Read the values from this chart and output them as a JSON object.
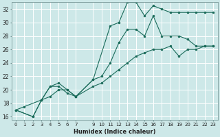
{
  "xlabel": "Humidex (Indice chaleur)",
  "bg_color": "#cde8e8",
  "grid_color": "#ffffff",
  "line_color": "#1a6b5a",
  "xlim": [
    -0.5,
    23.5
  ],
  "ylim": [
    15.5,
    33.0
  ],
  "xticks": [
    0,
    1,
    2,
    3,
    4,
    5,
    6,
    7,
    9,
    10,
    11,
    12,
    13,
    14,
    15,
    16,
    17,
    18,
    19,
    20,
    21,
    22,
    23
  ],
  "yticks": [
    16,
    18,
    20,
    22,
    24,
    26,
    28,
    30,
    32
  ],
  "xtick_fontsize": 5.0,
  "ytick_fontsize": 5.5,
  "xlabel_fontsize": 6.0,
  "line1_x": [
    0,
    1,
    3,
    4,
    5,
    6,
    7,
    9,
    11,
    12,
    13,
    14,
    15,
    16,
    17,
    18,
    19,
    20,
    21,
    22,
    23
  ],
  "line1_y": [
    17,
    17.5,
    18.5,
    20.5,
    20.5,
    19.5,
    19.0,
    21.5,
    29.5,
    30.0,
    33.0,
    33.0,
    31.0,
    32.5,
    32.0,
    31.5,
    31.5,
    31.5,
    31.5,
    31.5,
    31.5
  ],
  "line2_x": [
    0,
    2,
    3,
    4,
    5,
    6,
    7,
    9,
    10,
    11,
    12,
    13,
    14,
    15,
    16,
    17,
    18,
    19,
    20,
    21,
    22,
    23
  ],
  "line2_y": [
    17,
    16,
    18.5,
    20.5,
    21.0,
    20.0,
    19.0,
    21.5,
    22.0,
    24.0,
    27.0,
    29.0,
    29.0,
    28.0,
    31.0,
    28.0,
    28.0,
    28.0,
    27.5,
    26.5,
    26.5,
    26.5
  ],
  "line3_x": [
    0,
    2,
    3,
    4,
    5,
    6,
    7,
    9,
    10,
    11,
    12,
    13,
    14,
    15,
    16,
    17,
    18,
    19,
    20,
    21,
    22,
    23
  ],
  "line3_y": [
    17,
    16,
    18.5,
    19.0,
    20.0,
    20.0,
    19.0,
    20.5,
    21.0,
    22.0,
    23.0,
    24.0,
    25.0,
    25.5,
    26.0,
    26.0,
    26.5,
    25.0,
    26.0,
    26.0,
    26.5,
    26.5
  ]
}
